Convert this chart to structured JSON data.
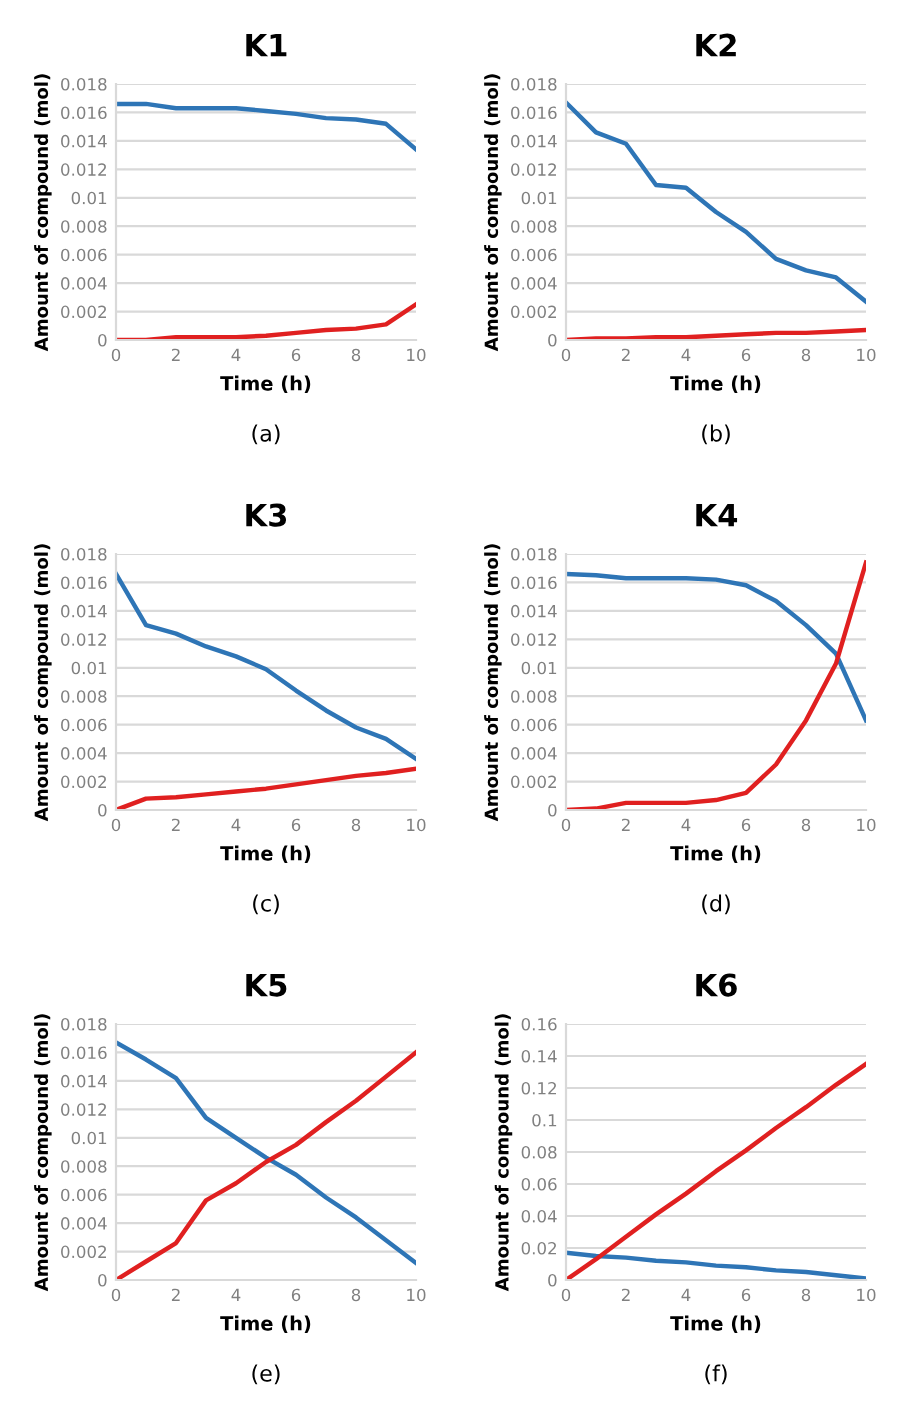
{
  "chart_data": [
    {
      "type": "line",
      "title": "K1",
      "xlabel": "Time (h)",
      "ylabel": "Amount of compound (mol)",
      "annotations": [
        "(a)"
      ],
      "x": [
        0,
        1,
        2,
        3,
        4,
        5,
        6,
        7,
        8,
        9,
        10
      ],
      "xlim": [
        0,
        10
      ],
      "xticks": [
        0,
        2,
        4,
        6,
        8,
        10
      ],
      "ylim": [
        0,
        0.018
      ],
      "yticks": [
        0,
        0.002,
        0.004,
        0.006,
        0.008,
        0.01,
        0.012,
        0.014,
        0.016,
        0.018
      ],
      "grid": "y",
      "series": [
        {
          "color": "#2e75b6",
          "values": [
            0.0166,
            0.0166,
            0.0163,
            0.0163,
            0.0163,
            0.0161,
            0.0159,
            0.0156,
            0.0155,
            0.0152,
            0.0134
          ]
        },
        {
          "color": "#e02020",
          "values": [
            0,
            0,
            0.0002,
            0.0002,
            0.0002,
            0.0003,
            0.0005,
            0.0007,
            0.0008,
            0.0011,
            0.0025
          ]
        }
      ]
    },
    {
      "type": "line",
      "title": "K2",
      "xlabel": "Time (h)",
      "ylabel": "Amount of compound (mol)",
      "annotations": [
        "(b)"
      ],
      "x": [
        0,
        1,
        2,
        3,
        4,
        5,
        6,
        7,
        8,
        9,
        10
      ],
      "xlim": [
        0,
        10
      ],
      "xticks": [
        0,
        2,
        4,
        6,
        8,
        10
      ],
      "ylim": [
        0,
        0.018
      ],
      "yticks": [
        0,
        0.002,
        0.004,
        0.006,
        0.008,
        0.01,
        0.012,
        0.014,
        0.016,
        0.018
      ],
      "grid": "y",
      "series": [
        {
          "color": "#2e75b6",
          "values": [
            0.0167,
            0.0146,
            0.0138,
            0.0109,
            0.0107,
            0.009,
            0.0076,
            0.0057,
            0.0049,
            0.0044,
            0.0027
          ]
        },
        {
          "color": "#e02020",
          "values": [
            0,
            0.0001,
            0.0001,
            0.0002,
            0.0002,
            0.0003,
            0.0004,
            0.0005,
            0.0005,
            0.0006,
            0.0007
          ]
        }
      ]
    },
    {
      "type": "line",
      "title": "K3",
      "xlabel": "Time (h)",
      "ylabel": "Amount of compound (mol)",
      "annotations": [
        "(c)"
      ],
      "x": [
        0,
        1,
        2,
        3,
        4,
        5,
        6,
        7,
        8,
        9,
        10
      ],
      "xlim": [
        0,
        10
      ],
      "xticks": [
        0,
        2,
        4,
        6,
        8,
        10
      ],
      "ylim": [
        0,
        0.018
      ],
      "yticks": [
        0,
        0.002,
        0.004,
        0.006,
        0.008,
        0.01,
        0.012,
        0.014,
        0.016,
        0.018
      ],
      "grid": "y",
      "series": [
        {
          "color": "#2e75b6",
          "values": [
            0.0166,
            0.013,
            0.0124,
            0.0115,
            0.0108,
            0.0099,
            0.0084,
            0.007,
            0.0058,
            0.005,
            0.0036
          ]
        },
        {
          "color": "#e02020",
          "values": [
            0,
            0.0008,
            0.0009,
            0.0011,
            0.0013,
            0.0015,
            0.0018,
            0.0021,
            0.0024,
            0.0026,
            0.0029
          ]
        }
      ]
    },
    {
      "type": "line",
      "title": "K4",
      "xlabel": "Time (h)",
      "ylabel": "Amount of compound (mol)",
      "annotations": [
        "(d)"
      ],
      "x": [
        0,
        1,
        2,
        3,
        4,
        5,
        6,
        7,
        8,
        9,
        10
      ],
      "xlim": [
        0,
        10
      ],
      "xticks": [
        0,
        2,
        4,
        6,
        8,
        10
      ],
      "ylim": [
        0,
        0.018
      ],
      "yticks": [
        0,
        0.002,
        0.004,
        0.006,
        0.008,
        0.01,
        0.012,
        0.014,
        0.016,
        0.018
      ],
      "grid": "y",
      "series": [
        {
          "color": "#2e75b6",
          "values": [
            0.0166,
            0.0165,
            0.0163,
            0.0163,
            0.0163,
            0.0162,
            0.0158,
            0.0147,
            0.013,
            0.011,
            0.0063
          ]
        },
        {
          "color": "#e02020",
          "values": [
            0,
            0.0001,
            0.0005,
            0.0005,
            0.0005,
            0.0007,
            0.0012,
            0.0032,
            0.0063,
            0.0103,
            0.0174
          ]
        }
      ]
    },
    {
      "type": "line",
      "title": "K5",
      "xlabel": "Time (h)",
      "ylabel": "Amount of compound (mol)",
      "annotations": [
        "(e)"
      ],
      "x": [
        0,
        1,
        2,
        3,
        4,
        5,
        6,
        7,
        8,
        9,
        10
      ],
      "xlim": [
        0,
        10
      ],
      "xticks": [
        0,
        2,
        4,
        6,
        8,
        10
      ],
      "ylim": [
        0,
        0.018
      ],
      "yticks": [
        0,
        0.002,
        0.004,
        0.006,
        0.008,
        0.01,
        0.012,
        0.014,
        0.016,
        0.018
      ],
      "grid": "y",
      "series": [
        {
          "color": "#2e75b6",
          "values": [
            0.0167,
            0.0155,
            0.0142,
            0.0114,
            0.01,
            0.0086,
            0.0074,
            0.0058,
            0.0044,
            0.0028,
            0.0012
          ]
        },
        {
          "color": "#e02020",
          "values": [
            0,
            0.0013,
            0.0026,
            0.0056,
            0.0068,
            0.0083,
            0.0095,
            0.0111,
            0.0126,
            0.0143,
            0.016
          ]
        }
      ]
    },
    {
      "type": "line",
      "title": "K6",
      "xlabel": "Time (h)",
      "ylabel": "Amount of compound (mol)",
      "annotations": [
        "(f)"
      ],
      "x": [
        0,
        1,
        2,
        3,
        4,
        5,
        6,
        7,
        8,
        9,
        10
      ],
      "xlim": [
        0,
        10
      ],
      "xticks": [
        0,
        2,
        4,
        6,
        8,
        10
      ],
      "ylim": [
        0,
        0.16
      ],
      "yticks": [
        0,
        0.02,
        0.04,
        0.06,
        0.08,
        0.1,
        0.12,
        0.14,
        0.16
      ],
      "grid": "y",
      "series": [
        {
          "color": "#2e75b6",
          "values": [
            0.017,
            0.015,
            0.014,
            0.012,
            0.011,
            0.009,
            0.008,
            0.006,
            0.005,
            0.003,
            0.001
          ]
        },
        {
          "color": "#e02020",
          "values": [
            0,
            0.013,
            0.027,
            0.041,
            0.054,
            0.068,
            0.081,
            0.095,
            0.108,
            0.122,
            0.135
          ]
        }
      ]
    }
  ]
}
